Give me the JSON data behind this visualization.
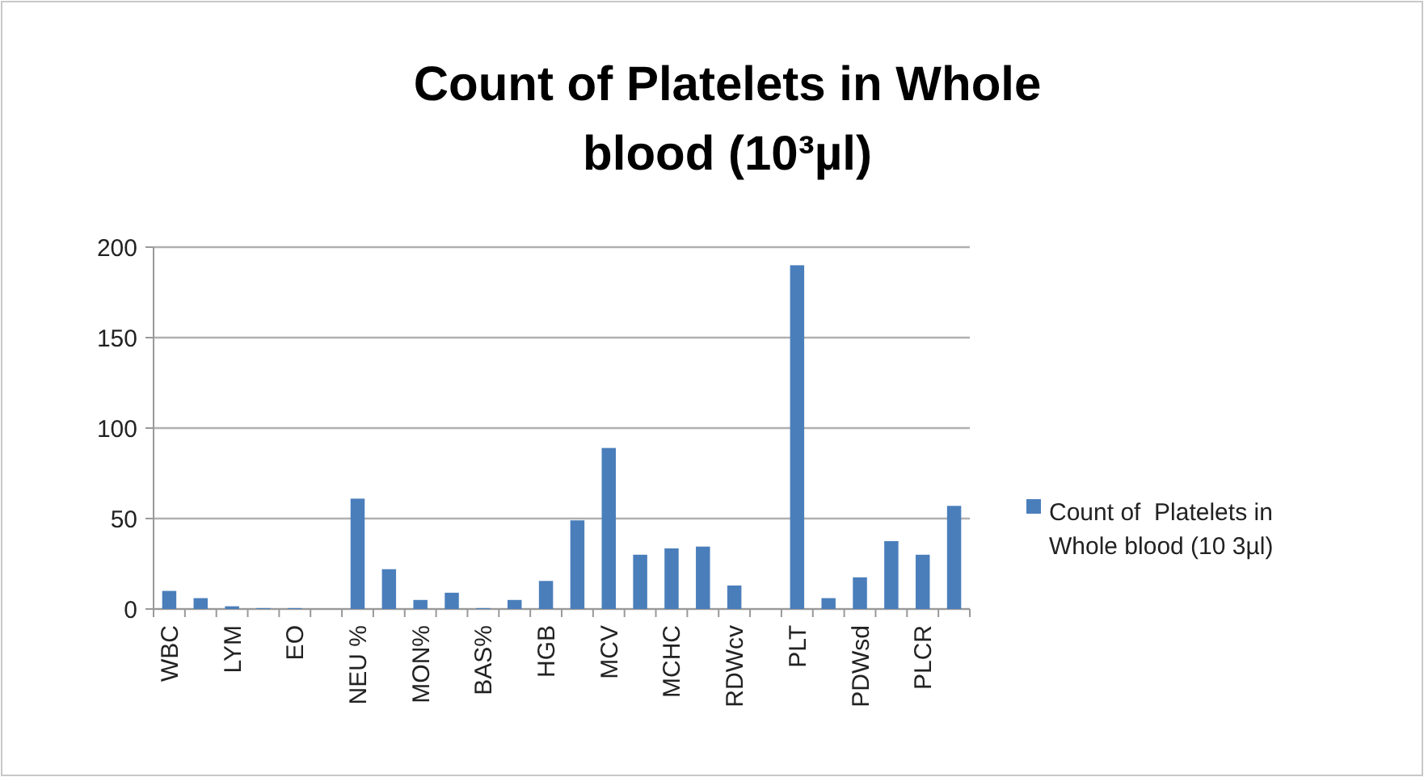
{
  "chart_data": {
    "type": "bar",
    "title": "Count of Platelets in Whole blood (10³µl)",
    "categories": [
      "WBC",
      null,
      "LYM",
      null,
      "EO",
      null,
      "NEU %",
      null,
      "MON%",
      null,
      "BAS%",
      null,
      "HGB",
      null,
      "MCV",
      null,
      "MCHC",
      null,
      "RDWcv",
      null,
      "PLT",
      null,
      "PDWsd",
      null,
      "PLCR",
      null
    ],
    "series": [
      {
        "name": "Count of  Platelets in Whole blood (10 3µl)",
        "color": "#4a7ebb",
        "values": [
          10,
          6,
          1.5,
          0.5,
          0.5,
          0,
          61,
          22,
          5,
          9,
          0.5,
          5,
          15.5,
          49,
          89,
          30,
          33.5,
          34.5,
          13,
          0,
          190,
          6,
          17.5,
          37.5,
          30,
          57
        ]
      }
    ],
    "ylim": [
      0,
      200
    ],
    "yticks": [
      0,
      50,
      100,
      150,
      200
    ],
    "grid": "y",
    "legend": "right"
  }
}
